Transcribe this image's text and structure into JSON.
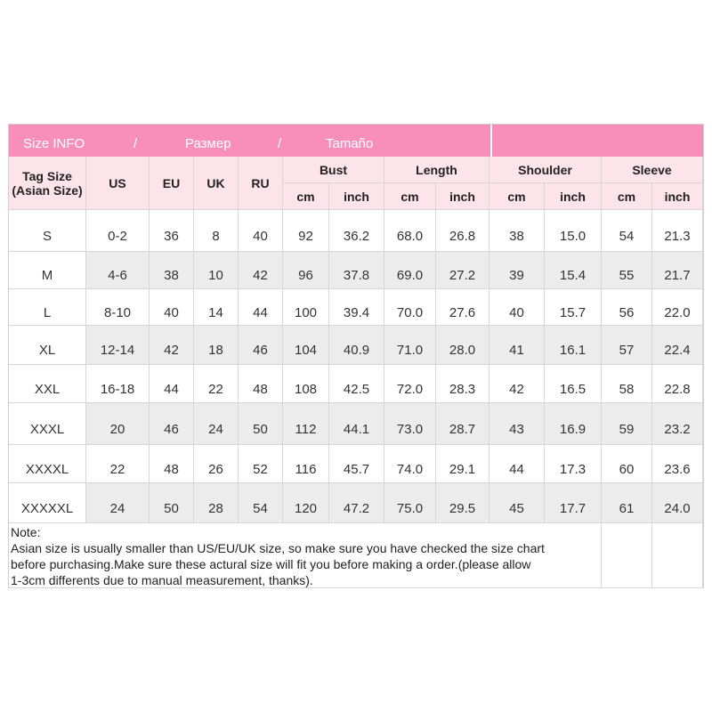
{
  "banner": [
    "Size INFO",
    "/",
    "Размер",
    "/",
    "Tamaño"
  ],
  "tag_size": [
    "Tag Size",
    "(Asian Size)"
  ],
  "columns": [
    "US",
    "EU",
    "UK",
    "RU"
  ],
  "groups": [
    "Bust",
    "Length",
    "Shoulder",
    "Sleeve"
  ],
  "units": [
    "cm",
    "inch",
    "cm",
    "inch",
    "cm",
    "inch",
    "cm",
    "inch"
  ],
  "rows": [
    [
      "S",
      "0-2",
      "36",
      "8",
      "40",
      "92",
      "36.2",
      "68.0",
      "26.8",
      "38",
      "15.0",
      "54",
      "21.3"
    ],
    [
      "M",
      "4-6",
      "38",
      "10",
      "42",
      "96",
      "37.8",
      "69.0",
      "27.2",
      "39",
      "15.4",
      "55",
      "21.7"
    ],
    [
      "L",
      "8-10",
      "40",
      "14",
      "44",
      "100",
      "39.4",
      "70.0",
      "27.6",
      "40",
      "15.7",
      "56",
      "22.0"
    ],
    [
      "XL",
      "12-14",
      "42",
      "18",
      "46",
      "104",
      "40.9",
      "71.0",
      "28.0",
      "41",
      "16.1",
      "57",
      "22.4"
    ],
    [
      "XXL",
      "16-18",
      "44",
      "22",
      "48",
      "108",
      "42.5",
      "72.0",
      "28.3",
      "42",
      "16.5",
      "58",
      "22.8"
    ],
    [
      "XXXL",
      "20",
      "46",
      "24",
      "50",
      "112",
      "44.1",
      "73.0",
      "28.7",
      "43",
      "16.9",
      "59",
      "23.2"
    ],
    [
      "XXXXL",
      "22",
      "48",
      "26",
      "52",
      "116",
      "45.7",
      "74.0",
      "29.1",
      "44",
      "17.3",
      "60",
      "23.6"
    ],
    [
      "XXXXXL",
      "24",
      "50",
      "28",
      "54",
      "120",
      "47.2",
      "75.0",
      "29.5",
      "45",
      "17.7",
      "61",
      "24.0"
    ]
  ],
  "note": [
    "Note:",
    "Asian size is usually smaller than US/EU/UK size, so make sure you have checked the size chart",
    "before purchasing.Make sure these actural size will fit you before making a order.(please allow",
    "1-3cm differents due to manual measurement, thanks)."
  ]
}
